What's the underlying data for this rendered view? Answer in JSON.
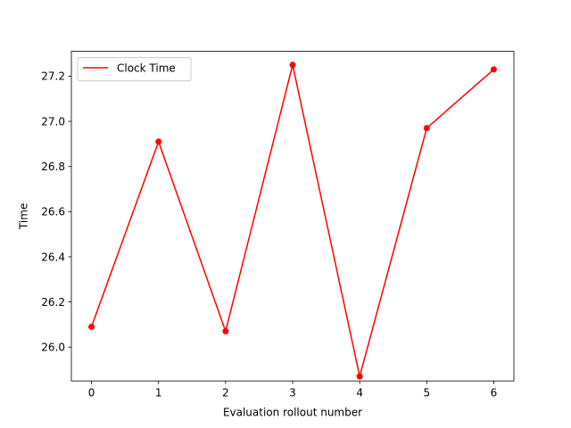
{
  "chart_data": {
    "type": "line",
    "title": "",
    "xlabel": "Evaluation rollout number",
    "ylabel": "Time",
    "x": [
      0,
      1,
      2,
      3,
      4,
      5,
      6
    ],
    "xticks": [
      "0",
      "1",
      "2",
      "3",
      "4",
      "5",
      "6"
    ],
    "yticks": [
      "26.0",
      "26.2",
      "26.4",
      "26.6",
      "26.8",
      "27.0",
      "27.2"
    ],
    "xlim": [
      -0.3,
      6.3
    ],
    "ylim": [
      25.85,
      27.31
    ],
    "grid": false,
    "legend_position": "upper-left",
    "series": [
      {
        "name": "Clock Time",
        "color": "#ff0000",
        "marker": "circle",
        "values": [
          26.09,
          26.91,
          26.07,
          27.25,
          25.87,
          26.97,
          27.23
        ]
      }
    ]
  }
}
